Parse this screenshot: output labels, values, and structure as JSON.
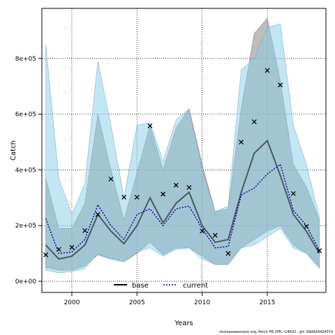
{
  "chart_data": {
    "type": "line",
    "xlabel": "Years",
    "ylabel": "Catch",
    "caption": "stockassessment.org, Perch PB 2PR, r14632 , git: 69d926d0437d",
    "xlim": [
      1997.7,
      2019.5
    ],
    "ylim": [
      -40000,
      980000
    ],
    "x_ticks": [
      2000,
      2005,
      2010,
      2015
    ],
    "y_ticks": [
      0,
      200000,
      400000,
      600000,
      800000
    ],
    "y_tick_labels": [
      "0e+00",
      "2e+05",
      "4e+05",
      "6e+05",
      "8e+05"
    ],
    "grid": true,
    "legend_position": "bottom",
    "colors": {
      "base_band": "#9a9a9a",
      "current_band": "#87ceeb",
      "base_line": "#000000",
      "current_line": "#00008b",
      "points": "#000000"
    },
    "years": [
      1998,
      1999,
      2000,
      2001,
      2002,
      2003,
      2004,
      2005,
      2006,
      2007,
      2008,
      2009,
      2010,
      2011,
      2012,
      2013,
      2014,
      2015,
      2016,
      2017,
      2018,
      2019
    ],
    "observed": [
      95000,
      115000,
      122000,
      182000,
      240000,
      367000,
      302000,
      302000,
      558000,
      313000,
      345000,
      337000,
      180000,
      165000,
      100000,
      500000,
      573000,
      757000,
      705000,
      315000,
      197000,
      110000
    ],
    "series": [
      {
        "name": "base",
        "style": "solid",
        "values": [
          130000,
          80000,
          90000,
          130000,
          240000,
          180000,
          135000,
          200000,
          300000,
          210000,
          280000,
          320000,
          200000,
          140000,
          150000,
          320000,
          460000,
          505000,
          380000,
          240000,
          180000,
          100000
        ],
        "lower": [
          50000,
          40000,
          40000,
          55000,
          95000,
          80000,
          70000,
          100000,
          140000,
          95000,
          120000,
          120000,
          90000,
          60000,
          60000,
          120000,
          150000,
          180000,
          200000,
          130000,
          100000,
          50000
        ],
        "upper": [
          370000,
          190000,
          190000,
          280000,
          600000,
          400000,
          220000,
          390000,
          560000,
          400000,
          550000,
          620000,
          420000,
          250000,
          260000,
          620000,
          890000,
          945000,
          720000,
          420000,
          340000,
          220000
        ]
      },
      {
        "name": "current",
        "style": "dotted",
        "values": [
          225000,
          100000,
          105000,
          150000,
          275000,
          200000,
          150000,
          240000,
          260000,
          200000,
          260000,
          270000,
          190000,
          120000,
          125000,
          310000,
          335000,
          385000,
          420000,
          255000,
          200000,
          110000
        ],
        "lower": [
          40000,
          30000,
          35000,
          45000,
          100000,
          80000,
          70000,
          105000,
          120000,
          90000,
          115000,
          120000,
          80000,
          60000,
          60000,
          120000,
          130000,
          160000,
          190000,
          120000,
          100000,
          45000
        ],
        "upper": [
          850000,
          370000,
          240000,
          350000,
          790000,
          560000,
          300000,
          560000,
          570000,
          430000,
          580000,
          620000,
          400000,
          250000,
          270000,
          760000,
          800000,
          910000,
          925000,
          560000,
          420000,
          230000
        ]
      }
    ]
  }
}
